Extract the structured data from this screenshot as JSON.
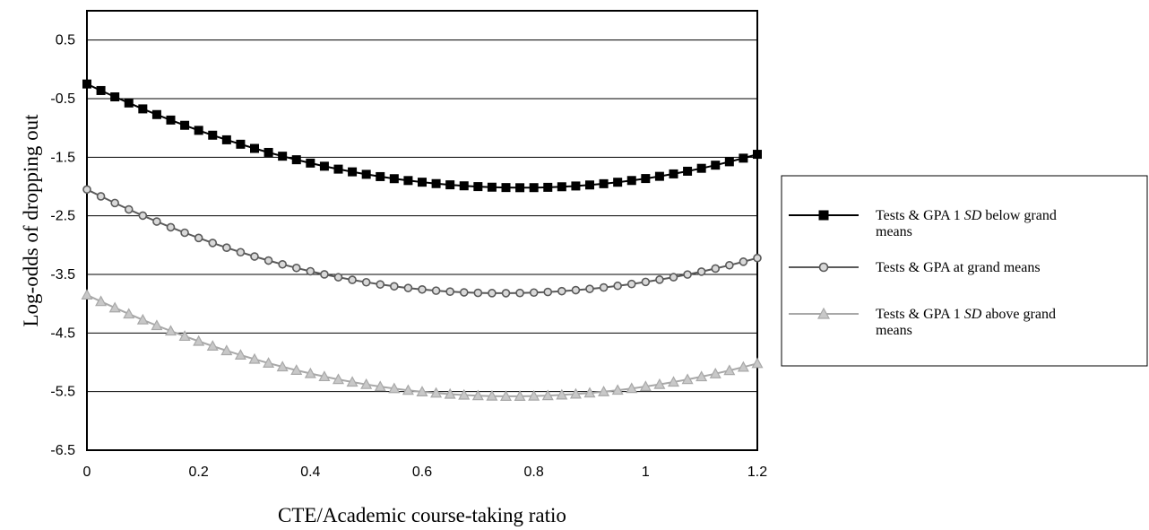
{
  "chart_data": {
    "type": "line",
    "title": "",
    "xlabel": "CTE/Academic course-taking ratio",
    "ylabel": "Log-odds of dropping out",
    "xlim": [
      0,
      1.2
    ],
    "ylim": [
      -6.5,
      1.0
    ],
    "x_ticks": [
      "0",
      "0.2",
      "0.4",
      "0.6",
      "0.8",
      "1",
      "1.2"
    ],
    "y_ticks": [
      "0.5",
      "-0.5",
      "-1.5",
      "-2.5",
      "-3.5",
      "-4.5",
      "-5.5",
      "-6.5"
    ],
    "grid": true,
    "legend_position": "right",
    "x_step": 0.025,
    "series": [
      {
        "name_parts": [
          "Tests & GPA 1 ",
          "SD",
          " below grand"
        ],
        "name_line2": "means",
        "color": "#000000",
        "marker": "square",
        "curve": {
          "a": -0.25,
          "vertex_x": 0.78,
          "vertex_y": -2.02,
          "right_end_y": -1.45
        }
      },
      {
        "name_parts": [
          "Tests & GPA at grand means"
        ],
        "name_line2": "",
        "color": "#5a5a5a",
        "marker": "circle",
        "curve": {
          "a": -2.05,
          "vertex_x": 0.74,
          "vertex_y": -3.82,
          "right_end_y": -3.22
        }
      },
      {
        "name_parts": [
          "Tests & GPA 1 ",
          "SD",
          " above grand"
        ],
        "name_line2": "means",
        "color": "#a8a8a8",
        "marker": "triangle",
        "curve": {
          "a": -3.85,
          "vertex_x": 0.76,
          "vertex_y": -5.58,
          "right_end_y": -5.02
        }
      }
    ]
  }
}
